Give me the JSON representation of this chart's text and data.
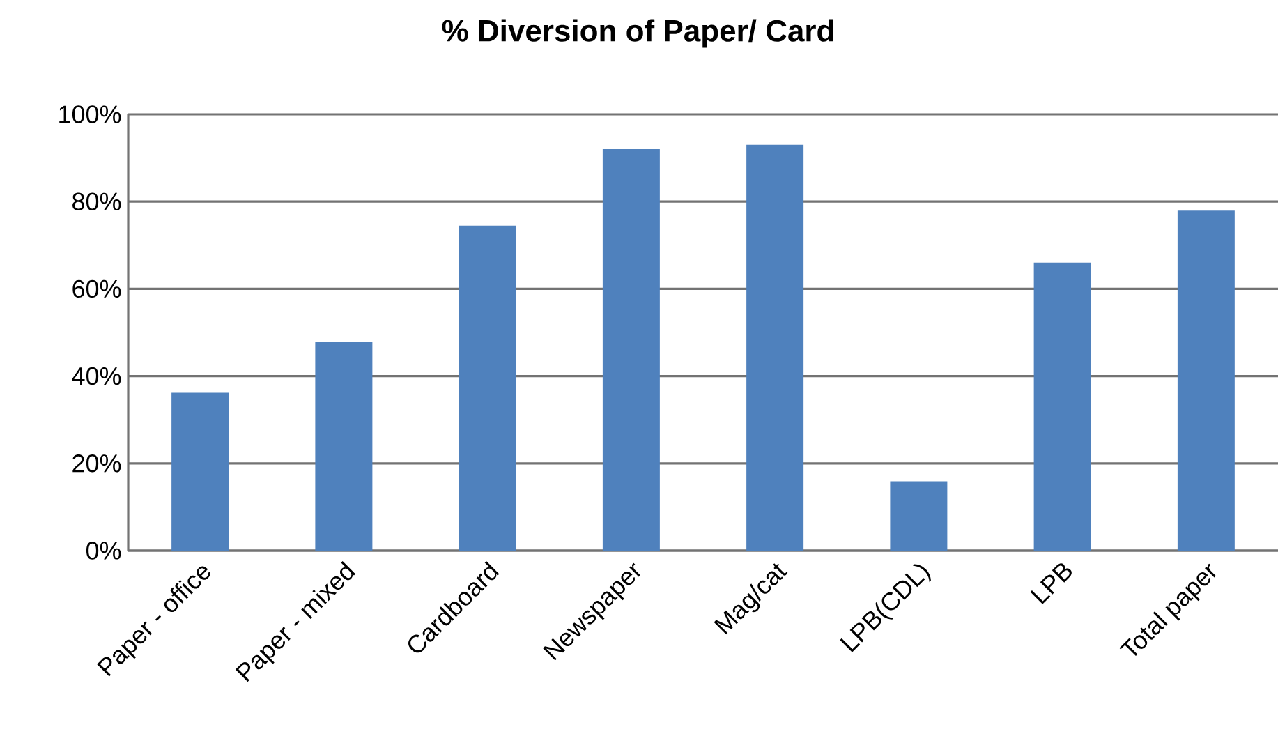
{
  "chart_data": {
    "type": "bar",
    "title": "% Diversion of Paper/ Card",
    "categories": [
      "Paper - office",
      "Paper - mixed",
      "Cardboard",
      "Newspaper",
      "Mag/cat",
      "LPB(CDL)",
      "LPB",
      "Total paper"
    ],
    "values": [
      36.2,
      47.8,
      74.5,
      92.0,
      93.0,
      15.9,
      66.0,
      77.9
    ],
    "color": "#4f81bd",
    "ylim": [
      0,
      100
    ],
    "yticks": [
      {
        "value": 0,
        "label": "0%"
      },
      {
        "value": 20,
        "label": "20%"
      },
      {
        "value": 40,
        "label": "40%"
      },
      {
        "value": 60,
        "label": "60%"
      },
      {
        "value": 80,
        "label": "80%"
      },
      {
        "value": 100,
        "label": "100%"
      }
    ],
    "grid": "y"
  }
}
